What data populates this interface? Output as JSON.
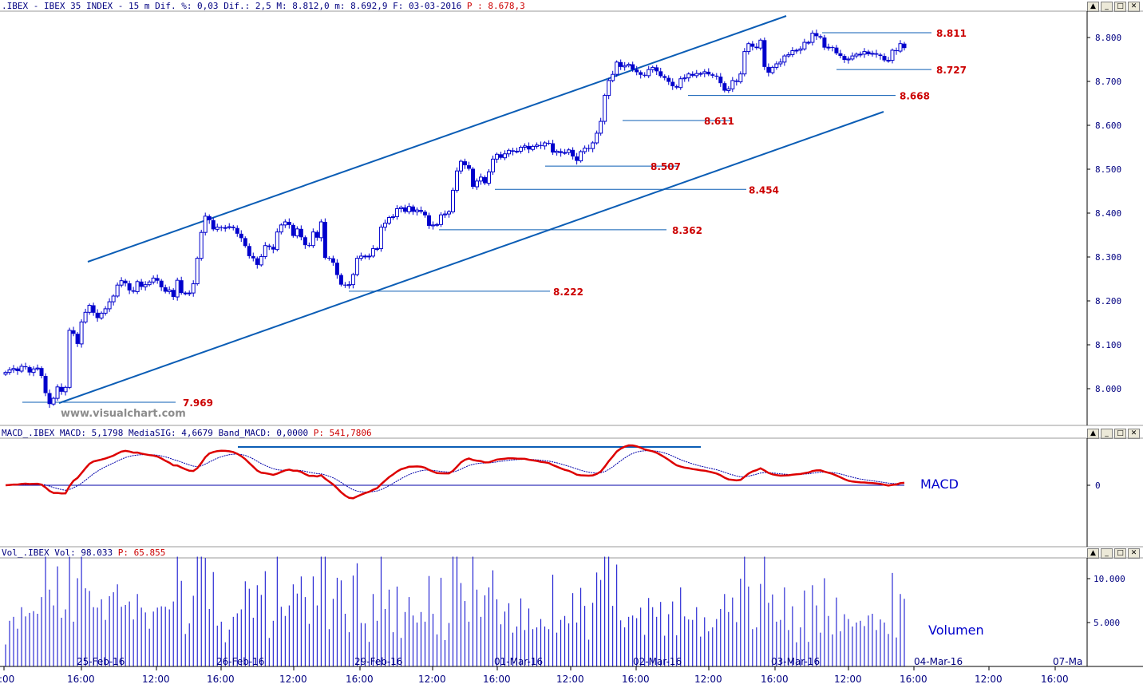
{
  "price_panel": {
    "header": {
      "symbol": ".IBEX - IBEX 35 INDEX -",
      "interval": "15 m",
      "dif_pct": "Dif. %: 0,03",
      "dif": "Dif.: 2,5",
      "max": "M: 8.812,0",
      "min": "m: 8.692,9",
      "date": "F: 03-03-2016",
      "last": "P : 8.678,3"
    },
    "watermark": "www.visualchart.com"
  },
  "macd_panel": {
    "header": {
      "prefix": "MACD_.IBEX",
      "macd": "MACD: 5,1798",
      "signal": "MediaSIG: 4,6679",
      "band": "Band_MACD: 0,0000",
      "p": "P: 541,7806"
    },
    "label": "MACD",
    "zero_label": "0"
  },
  "volume_panel": {
    "header": {
      "prefix": "Vol_.IBEX",
      "vol": "Vol: 98.033",
      "p": "P: 65.855"
    },
    "label": "Volumen"
  },
  "window_buttons": [
    "▲",
    "_",
    "□",
    "✕"
  ],
  "colors": {
    "candle": "#0000cc",
    "trendline": "#0b5db5",
    "level_label": "#cc0000",
    "macd": "#dd0000",
    "signal": "#0000aa",
    "volume": "#0000cc"
  },
  "chart_data": {
    "type": "candlestick",
    "price_axis": {
      "ticks": [
        "8.000",
        "8.100",
        "8.200",
        "8.300",
        "8.400",
        "8.500",
        "8.600",
        "8.700",
        "8.800"
      ],
      "range": [
        7.9,
        8.88
      ]
    },
    "date_labels": [
      "25-Feb-16",
      "26-Feb-16",
      "29-Feb-16",
      "01-Mar-16",
      "02-Mar-16",
      "03-Mar-16",
      "04-Mar-16",
      "07-Ma"
    ],
    "time_labels": [
      ":00",
      "16:00",
      "12:00",
      "16:00",
      "12:00",
      "16:00",
      "12:00",
      "16:00",
      "12:00",
      "16:00",
      "12:00",
      "16:00",
      "12:00",
      "16:00",
      "12:00",
      "16:00"
    ],
    "close": [
      8.037,
      8.043,
      8.046,
      8.04,
      8.051,
      8.049,
      8.037,
      8.045,
      8.047,
      8.029,
      7.99,
      7.965,
      7.978,
      8.004,
      7.993,
      8.003,
      8.133,
      8.125,
      8.102,
      8.152,
      8.174,
      8.19,
      8.173,
      8.161,
      8.172,
      8.182,
      8.198,
      8.211,
      8.236,
      8.246,
      8.24,
      8.224,
      8.221,
      8.244,
      8.232,
      8.237,
      8.243,
      8.252,
      8.246,
      8.231,
      8.221,
      8.225,
      8.209,
      8.247,
      8.218,
      8.218,
      8.218,
      8.239,
      8.297,
      8.356,
      8.393,
      8.384,
      8.363,
      8.368,
      8.366,
      8.367,
      8.369,
      8.366,
      8.353,
      8.343,
      8.325,
      8.302,
      8.297,
      8.282,
      8.301,
      8.326,
      8.323,
      8.317,
      8.357,
      8.373,
      8.38,
      8.373,
      8.348,
      8.364,
      8.345,
      8.327,
      8.326,
      8.357,
      8.344,
      8.38,
      8.298,
      8.297,
      8.287,
      8.259,
      8.237,
      8.235,
      8.237,
      8.26,
      8.297,
      8.302,
      8.302,
      8.302,
      8.319,
      8.319,
      8.368,
      8.377,
      8.39,
      8.392,
      8.41,
      8.413,
      8.403,
      8.415,
      8.403,
      8.407,
      8.403,
      8.395,
      8.371,
      8.373,
      8.374,
      8.396,
      8.398,
      8.403,
      8.452,
      8.496,
      8.518,
      8.509,
      8.501,
      8.46,
      8.473,
      8.482,
      8.468,
      8.494,
      8.523,
      8.534,
      8.526,
      8.535,
      8.543,
      8.54,
      8.541,
      8.55,
      8.553,
      8.545,
      8.552,
      8.555,
      8.553,
      8.56,
      8.559,
      8.538,
      8.541,
      8.537,
      8.538,
      8.544,
      8.529,
      8.519,
      8.54,
      8.548,
      8.547,
      8.56,
      8.582,
      8.609,
      8.668,
      8.702,
      8.716,
      8.744,
      8.733,
      8.736,
      8.739,
      8.727,
      8.721,
      8.715,
      8.713,
      8.727,
      8.732,
      8.723,
      8.712,
      8.708,
      8.699,
      8.689,
      8.686,
      8.706,
      8.708,
      8.717,
      8.713,
      8.718,
      8.718,
      8.722,
      8.716,
      8.713,
      8.711,
      8.696,
      8.679,
      8.683,
      8.702,
      8.699,
      8.717,
      8.768,
      8.786,
      8.779,
      8.776,
      8.794,
      8.733,
      8.72,
      8.732,
      8.74,
      8.744,
      8.758,
      8.761,
      8.77,
      8.771,
      8.774,
      8.789,
      8.789,
      8.81,
      8.803,
      8.8,
      8.777,
      8.778,
      8.777,
      8.764,
      8.758,
      8.749,
      8.751,
      8.758,
      8.762,
      8.762,
      8.768,
      8.762,
      8.764,
      8.761,
      8.758,
      8.748,
      8.748,
      8.771,
      8.769,
      8.786,
      8.776
    ],
    "support_resistance_levels": [
      "7.969",
      "8.222",
      "8.362",
      "8.454",
      "8.507",
      "8.611",
      "8.668",
      "8.727",
      "8.811"
    ],
    "macd_axis": {
      "ticks": [
        "0"
      ]
    },
    "volume_axis": {
      "ticks": [
        "5.000",
        "10.000"
      ]
    }
  }
}
